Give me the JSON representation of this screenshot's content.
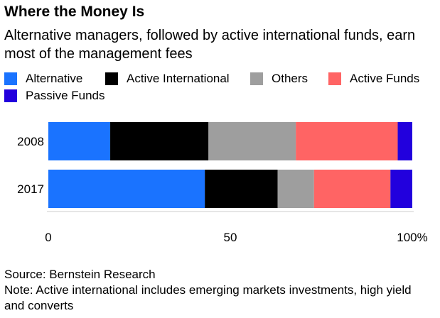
{
  "title": "Where the Money Is",
  "subtitle": "Alternative managers, followed by active international funds, earn most of the management fees",
  "colors": {
    "alternative": "#1a73ff",
    "active_international": "#000000",
    "others": "#9e9e9e",
    "active_funds": "#ff6464",
    "passive_funds": "#2200dd",
    "axis_line": "#cccccc"
  },
  "legend": [
    {
      "label": "Alternative",
      "color": "#1a73ff"
    },
    {
      "label": "Active International",
      "color": "#000000"
    },
    {
      "label": "Others",
      "color": "#9e9e9e"
    },
    {
      "label": "Active Funds",
      "color": "#ff6464"
    },
    {
      "label": "Passive Funds",
      "color": "#2200dd"
    }
  ],
  "chart_data": {
    "type": "bar",
    "orientation": "horizontal",
    "stacked": true,
    "categories": [
      "2008",
      "2017"
    ],
    "series": [
      {
        "name": "Alternative",
        "values": [
          17,
          43
        ]
      },
      {
        "name": "Active International",
        "values": [
          27,
          20
        ]
      },
      {
        "name": "Others",
        "values": [
          24,
          10
        ]
      },
      {
        "name": "Active Funds",
        "values": [
          28,
          21
        ]
      },
      {
        "name": "Passive Funds",
        "values": [
          4,
          6
        ]
      }
    ],
    "xlim": [
      0,
      100
    ],
    "xticks": [
      0,
      50,
      100
    ],
    "xtick_labels": [
      "0",
      "50",
      "100%"
    ],
    "grid": false,
    "legend_position": "top"
  },
  "footer": {
    "source": "Source: Bernstein Research",
    "note": "Note: Active international includes emerging markets investments, high yield and converts"
  }
}
